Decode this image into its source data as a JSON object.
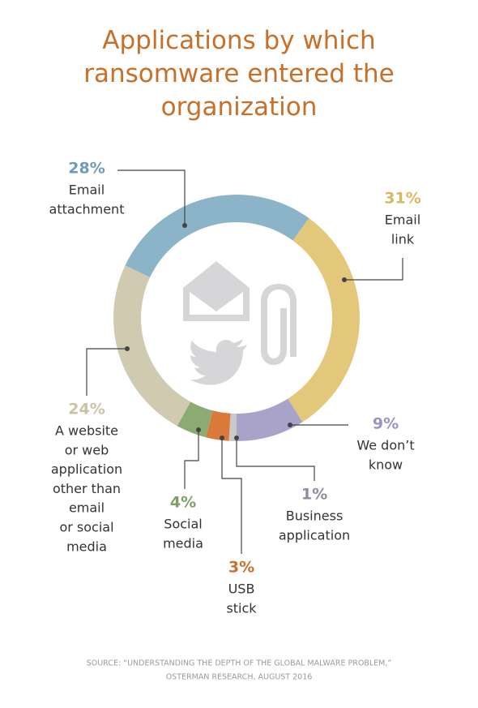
{
  "chart_data": {
    "type": "donut",
    "title": "Applications by which ransomware entered the organization",
    "categories": [
      [
        "Email",
        "link"
      ],
      [
        "We don’t",
        "know"
      ],
      [
        "Business",
        "application"
      ],
      [
        "USB",
        "stick"
      ],
      [
        "Social",
        "media"
      ],
      [
        "A website",
        "or web",
        "application",
        "other than",
        "email",
        "or social",
        "media"
      ],
      [
        "Email",
        "attachment"
      ]
    ],
    "values": [
      31,
      9,
      1,
      3,
      4,
      24,
      28
    ],
    "value_labels": [
      "31%",
      "9%",
      "1%",
      "3%",
      "4%",
      "24%",
      "28%"
    ],
    "colors": [
      "#e3c77a",
      "#a9a3c9",
      "#c9c9c9",
      "#d97a3a",
      "#8cab72",
      "#cfcab0",
      "#8cb4c8"
    ],
    "label_colors": [
      "#d9b860",
      "#9a94bf",
      "#8a8fa0",
      "#cc6f2e",
      "#7d9f63",
      "#c9c3a5",
      "#6f9bb3"
    ],
    "source": [
      "SOURCE: “UNDERSTANDING THE DEPTH OF THE GLOBAL MALWARE PROBLEM,”",
      "OSTERMAN RESEARCH, AUGUST 2016"
    ]
  }
}
